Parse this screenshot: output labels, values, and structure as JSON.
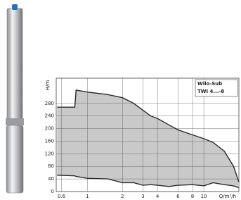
{
  "chart_data": {
    "type": "area_band",
    "y_label": "H/m",
    "x_label": "Q/m³/h",
    "legend_lines": [
      "Wilo-Sub",
      "TWI 4...-8"
    ],
    "log_x": true,
    "grid": true,
    "xlim": [
      0.54,
      20
    ],
    "xticks": [
      0.6,
      1,
      2,
      3,
      4,
      6,
      8,
      10
    ],
    "ylim": [
      0,
      360
    ],
    "yticks": [
      0,
      40,
      80,
      120,
      160,
      200,
      240,
      280
    ],
    "fill_color": "#c9c9c9",
    "line_color": "#2a2a2a",
    "x": [
      0.55,
      0.78,
      0.8,
      1,
      1.5,
      2,
      2.5,
      3,
      3.5,
      4,
      5,
      6,
      8,
      10,
      12,
      15,
      18,
      20
    ],
    "series": [
      {
        "color": "#2a2a2a",
        "values": [
          268,
          268,
          322,
          316,
          308,
          298,
          280,
          258,
          240,
          232,
          212,
          196,
          180,
          168,
          156,
          128,
          80,
          30
        ]
      },
      {
        "color": "#2a2a2a",
        "values": [
          52,
          50,
          48,
          42,
          40,
          28,
          28,
          20,
          22,
          20,
          16,
          20,
          22,
          18,
          28,
          22,
          18,
          12
        ]
      }
    ]
  }
}
